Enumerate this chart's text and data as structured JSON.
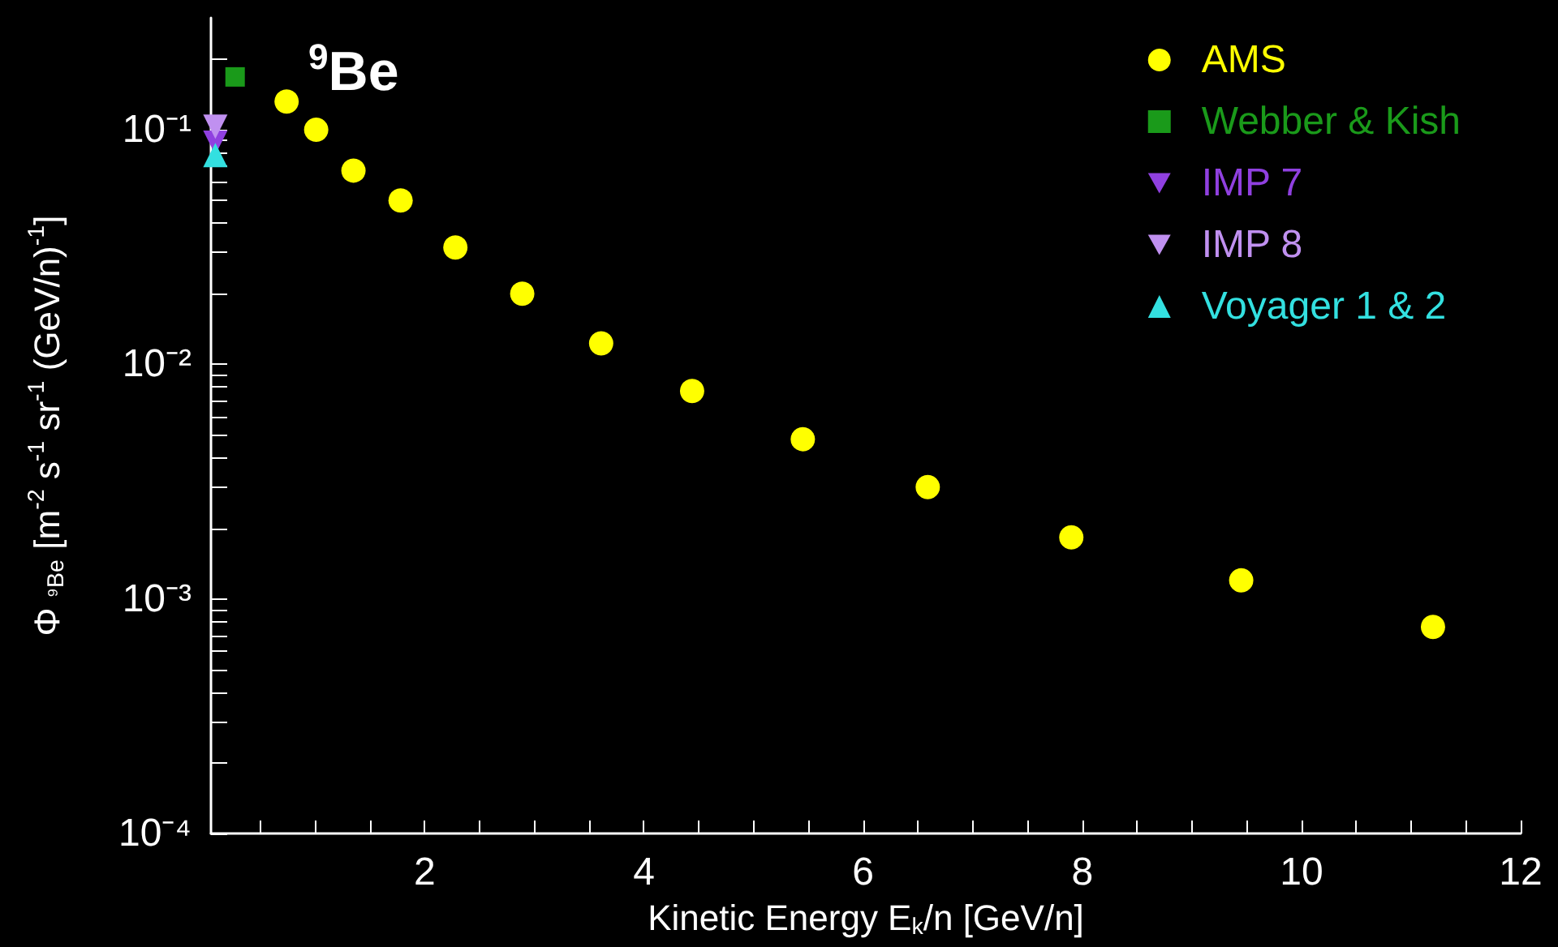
{
  "chart_data": {
    "type": "scatter",
    "xlabel": "Kinetic Energy E$_{k}$/n [GeV/n]",
    "ylabel": "Φ $_{⁹Be}$ [m$^{-2}$ s$^{-1}$ sr$^{-1}$ (GeV/n)$^{-1}$]",
    "annotations": [
      "$^{9}$Be"
    ],
    "log": "y",
    "grid": false,
    "legend": "top right",
    "xlim": [
      0.05,
      12
    ],
    "xticks": [
      {
        "value": 0.5,
        "label": null
      },
      {
        "value": 1,
        "label": null
      },
      {
        "value": 1.5,
        "label": null
      },
      2,
      {
        "value": 2.5,
        "label": null
      },
      {
        "value": 3,
        "label": null
      },
      {
        "value": 3.5,
        "label": null
      },
      4,
      {
        "value": 4.5,
        "label": null
      },
      {
        "value": 5,
        "label": null
      },
      {
        "value": 5.5,
        "label": null
      },
      6,
      {
        "value": 6.5,
        "label": null
      },
      {
        "value": 7,
        "label": null
      },
      {
        "value": 7.5,
        "label": null
      },
      8,
      {
        "value": 8.5,
        "label": null
      },
      {
        "value": 9,
        "label": null
      },
      {
        "value": 9.5,
        "label": null
      },
      10,
      {
        "value": 10.5,
        "label": null
      },
      {
        "value": 11,
        "label": null
      },
      {
        "value": 11.5,
        "label": null
      },
      12
    ],
    "ylim": [
      0.0001,
      0.3
    ],
    "yticks": [
      {
        "value": 0.0001,
        "label": "10⁻⁴"
      },
      {
        "value": 0.0002,
        "label": null
      },
      {
        "value": 0.0003,
        "label": null
      },
      {
        "value": 0.0004,
        "label": null
      },
      {
        "value": 0.0005,
        "label": null
      },
      {
        "value": 0.0006,
        "label": null
      },
      {
        "value": 0.0007,
        "label": null
      },
      {
        "value": 0.0008,
        "label": null
      },
      {
        "value": 0.0009,
        "label": null
      },
      {
        "value": 0.001,
        "label": "10⁻³"
      },
      {
        "value": 0.002,
        "label": null
      },
      {
        "value": 0.003,
        "label": null
      },
      {
        "value": 0.004,
        "label": null
      },
      {
        "value": 0.005,
        "label": null
      },
      {
        "value": 0.006,
        "label": null
      },
      {
        "value": 0.007,
        "label": null
      },
      {
        "value": 0.008,
        "label": null
      },
      {
        "value": 0.009,
        "label": null
      },
      {
        "value": 0.01,
        "label": "10⁻²"
      },
      {
        "value": 0.02,
        "label": null
      },
      {
        "value": 0.03,
        "label": null
      },
      {
        "value": 0.04,
        "label": null
      },
      {
        "value": 0.05,
        "label": null
      },
      {
        "value": 0.06,
        "label": null
      },
      {
        "value": 0.07,
        "label": null
      },
      {
        "value": 0.08,
        "label": null
      },
      {
        "value": 0.09,
        "label": null
      },
      {
        "value": 0.1,
        "label": "10⁻¹"
      },
      {
        "value": 0.2,
        "label": null
      }
    ],
    "series": [
      {
        "name": "AMS",
        "color": "#ffff00",
        "marker": "circle",
        "x": [
          0.74,
          1.01,
          1.35,
          1.78,
          2.28,
          2.89,
          3.61,
          4.44,
          5.45,
          6.59,
          7.9,
          9.45,
          11.2
        ],
        "values": [
          0.132,
          0.1,
          0.067,
          0.05,
          0.0315,
          0.02,
          0.0123,
          0.0077,
          0.0048,
          0.003,
          0.00183,
          0.0012,
          0.00076
        ]
      },
      {
        "name": "Webber & Kish",
        "color": "#1a9a1a",
        "marker": "square",
        "x": [
          0.27
        ],
        "values": [
          0.168
        ]
      },
      {
        "name": "IMP 7",
        "color": "#9040e0",
        "marker": "triangle-down",
        "x": [
          0.09
        ],
        "values": [
          0.088
        ]
      },
      {
        "name": "IMP 8",
        "color": "#c090f0",
        "marker": "triangle-down",
        "x": [
          0.09
        ],
        "values": [
          0.103
        ]
      },
      {
        "name": "Voyager 1 & 2",
        "color": "#33e0e0",
        "marker": "triangle",
        "x": [
          0.09
        ],
        "values": [
          0.078
        ]
      }
    ]
  }
}
